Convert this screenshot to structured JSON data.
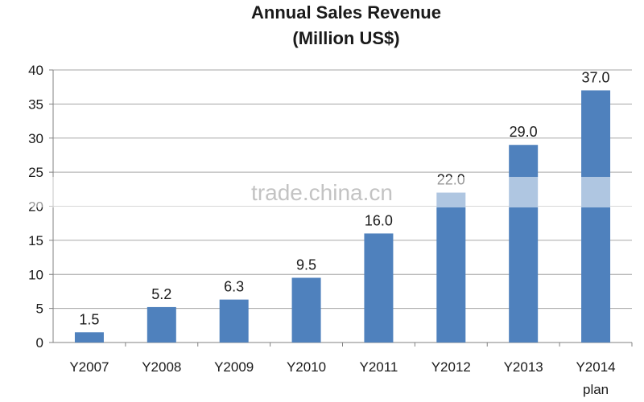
{
  "chart_data": {
    "type": "bar",
    "title_line1": "Annual Sales Revenue",
    "title_line2": "(Million US$)",
    "categories": [
      "Y2007",
      "Y2008",
      "Y2009",
      "Y2010",
      "Y2011",
      "Y2012",
      "Y2013",
      "Y2014"
    ],
    "category_sublabels": [
      "",
      "",
      "",
      "",
      "",
      "",
      "",
      "plan"
    ],
    "values": [
      1.5,
      5.2,
      6.3,
      9.5,
      16.0,
      22.0,
      29.0,
      37.0
    ],
    "value_labels": [
      "1.5",
      "5.2",
      "6.3",
      "9.5",
      "16.0",
      "22.0",
      "29.0",
      "37.0"
    ],
    "ylim": [
      0,
      40
    ],
    "yticks": [
      0,
      5,
      10,
      15,
      20,
      25,
      30,
      35,
      40
    ],
    "grid": true,
    "legend": "none",
    "xlabel": "",
    "ylabel": ""
  },
  "colors": {
    "bar": "#4f81bd",
    "grid": "#a6a6a6",
    "axis": "#808080"
  },
  "watermark": {
    "text": "trade.china.cn"
  }
}
